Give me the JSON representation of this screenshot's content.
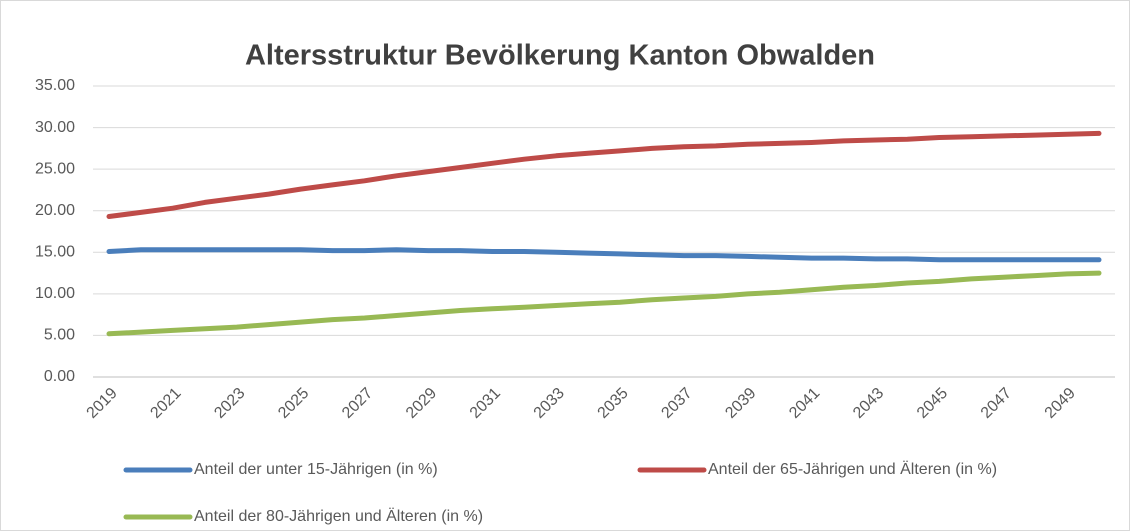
{
  "chart_data": {
    "type": "line",
    "title": "Altersstruktur Bevölkerung Kanton Obwalden",
    "categories": [
      "2019",
      null,
      "2021",
      null,
      "2023",
      null,
      "2025",
      null,
      "2027",
      null,
      "2029",
      null,
      "2031",
      null,
      "2033",
      null,
      "2035",
      null,
      "2037",
      null,
      "2039",
      null,
      "2041",
      null,
      "2043",
      null,
      "2045",
      null,
      "2047",
      null,
      "2049",
      null
    ],
    "series": [
      {
        "name": "Anteil der unter 15-Jährigen (in %)",
        "color": "#4a7ebb",
        "values": [
          15.1,
          15.3,
          15.3,
          15.3,
          15.3,
          15.3,
          15.3,
          15.2,
          15.2,
          15.3,
          15.2,
          15.2,
          15.1,
          15.1,
          15.0,
          14.9,
          14.8,
          14.7,
          14.6,
          14.6,
          14.5,
          14.4,
          14.3,
          14.3,
          14.2,
          14.2,
          14.1,
          14.1,
          14.1,
          14.1,
          14.1,
          14.1
        ]
      },
      {
        "name": "Anteil der 65-Jährigen und Älteren (in %)",
        "color": "#be4b48",
        "values": [
          19.3,
          19.8,
          20.3,
          21.0,
          21.5,
          22.0,
          22.6,
          23.1,
          23.6,
          24.2,
          24.7,
          25.2,
          25.7,
          26.2,
          26.6,
          26.9,
          27.2,
          27.5,
          27.7,
          27.8,
          28.0,
          28.1,
          28.2,
          28.4,
          28.5,
          28.6,
          28.8,
          28.9,
          29.0,
          29.1,
          29.2,
          29.3
        ]
      },
      {
        "name": "Anteil der 80-Jährigen und Älteren (in %)",
        "color": "#98b954",
        "values": [
          5.2,
          5.4,
          5.6,
          5.8,
          6.0,
          6.3,
          6.6,
          6.9,
          7.1,
          7.4,
          7.7,
          8.0,
          8.2,
          8.4,
          8.6,
          8.8,
          9.0,
          9.3,
          9.5,
          9.7,
          10.0,
          10.2,
          10.5,
          10.8,
          11.0,
          11.3,
          11.5,
          11.8,
          12.0,
          12.2,
          12.4,
          12.5
        ]
      }
    ],
    "ylim": [
      0,
      35
    ],
    "yticks": [
      {
        "value": 0,
        "label": "0.00"
      },
      {
        "value": 5,
        "label": "5.00"
      },
      {
        "value": 10,
        "label": "10.00"
      },
      {
        "value": 15,
        "label": "15.00"
      },
      {
        "value": 20,
        "label": "20.00"
      },
      {
        "value": 25,
        "label": "25.00"
      },
      {
        "value": 30,
        "label": "30.00"
      },
      {
        "value": 35,
        "label": "35.00"
      }
    ],
    "grid": true,
    "legend": "bottom"
  }
}
